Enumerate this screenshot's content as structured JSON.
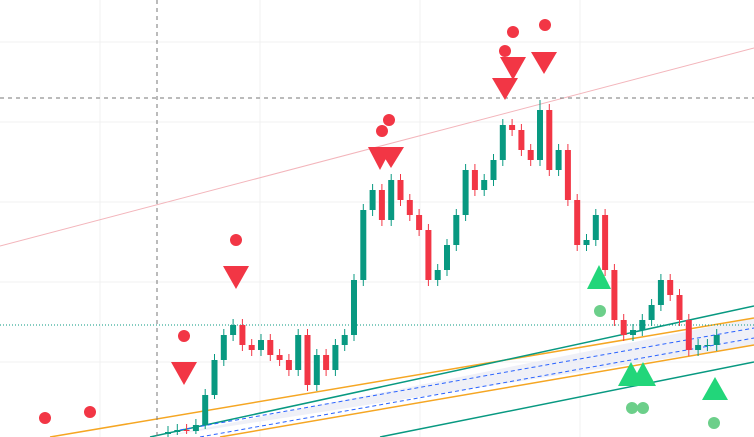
{
  "chart_data": {
    "type": "candlestick",
    "ylim": [
      0,
      437
    ],
    "up_color": "#089981",
    "down_color": "#f23645",
    "open": [
      3,
      5,
      7,
      6,
      12,
      42,
      77,
      102,
      112,
      92,
      87,
      97,
      82,
      77,
      67,
      102,
      52,
      82,
      67,
      92,
      102,
      157,
      227,
      247,
      217,
      257,
      237,
      222,
      207,
      157,
      167,
      192,
      222,
      267,
      247,
      257,
      277,
      312,
      307,
      287,
      277,
      327,
      267,
      287,
      237,
      192,
      197,
      222,
      167,
      117,
      102,
      107,
      117,
      132,
      157,
      142,
      117,
      87,
      92,
      92
    ],
    "high": [
      11,
      13,
      13,
      18,
      48,
      83,
      108,
      118,
      118,
      98,
      103,
      103,
      88,
      83,
      108,
      108,
      88,
      88,
      98,
      108,
      163,
      233,
      253,
      253,
      263,
      263,
      243,
      228,
      213,
      173,
      198,
      228,
      273,
      273,
      263,
      283,
      318,
      318,
      313,
      293,
      337,
      333,
      293,
      293,
      243,
      203,
      228,
      228,
      173,
      123,
      113,
      123,
      138,
      163,
      163,
      148,
      123,
      98,
      98,
      108
    ],
    "low": [
      0,
      2,
      3,
      3,
      8,
      38,
      71,
      96,
      86,
      81,
      81,
      76,
      71,
      61,
      61,
      46,
      46,
      61,
      61,
      86,
      96,
      151,
      221,
      211,
      211,
      231,
      216,
      201,
      151,
      151,
      161,
      186,
      216,
      241,
      241,
      251,
      271,
      301,
      281,
      271,
      271,
      261,
      261,
      231,
      186,
      186,
      191,
      161,
      111,
      96,
      96,
      101,
      111,
      126,
      136,
      111,
      81,
      81,
      86,
      86
    ],
    "close": [
      5,
      7,
      6,
      12,
      42,
      77,
      102,
      112,
      92,
      87,
      97,
      82,
      77,
      67,
      102,
      52,
      82,
      67,
      92,
      102,
      157,
      227,
      247,
      217,
      257,
      237,
      222,
      207,
      157,
      167,
      192,
      222,
      267,
      247,
      257,
      277,
      312,
      307,
      287,
      277,
      327,
      267,
      287,
      237,
      192,
      197,
      222,
      167,
      117,
      102,
      107,
      117,
      132,
      157,
      142,
      117,
      87,
      92,
      92,
      102
    ]
  }
}
